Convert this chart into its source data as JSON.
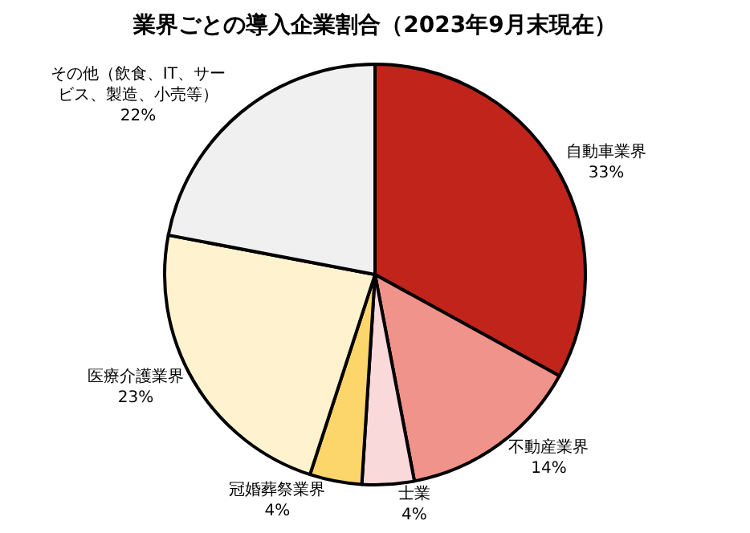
{
  "chart_data": {
    "type": "pie",
    "title": "業界ごとの導入企業割合（2023年9月末現在）",
    "categories": [
      "自動車業界",
      "不動産業界",
      "士業",
      "冠婚葬祭業界",
      "医療介護業界",
      "その他（飲食、IT、サービス、製造、小売等）"
    ],
    "values": [
      33,
      14,
      4,
      4,
      23,
      22
    ],
    "value_labels": [
      "33%",
      "14%",
      "4%",
      "4%",
      "23%",
      "22%"
    ],
    "colors": [
      "#c0241a",
      "#f0938a",
      "#f9d9d9",
      "#fcd66b",
      "#fff3cf",
      "#f0f0f0"
    ],
    "legend": false
  }
}
